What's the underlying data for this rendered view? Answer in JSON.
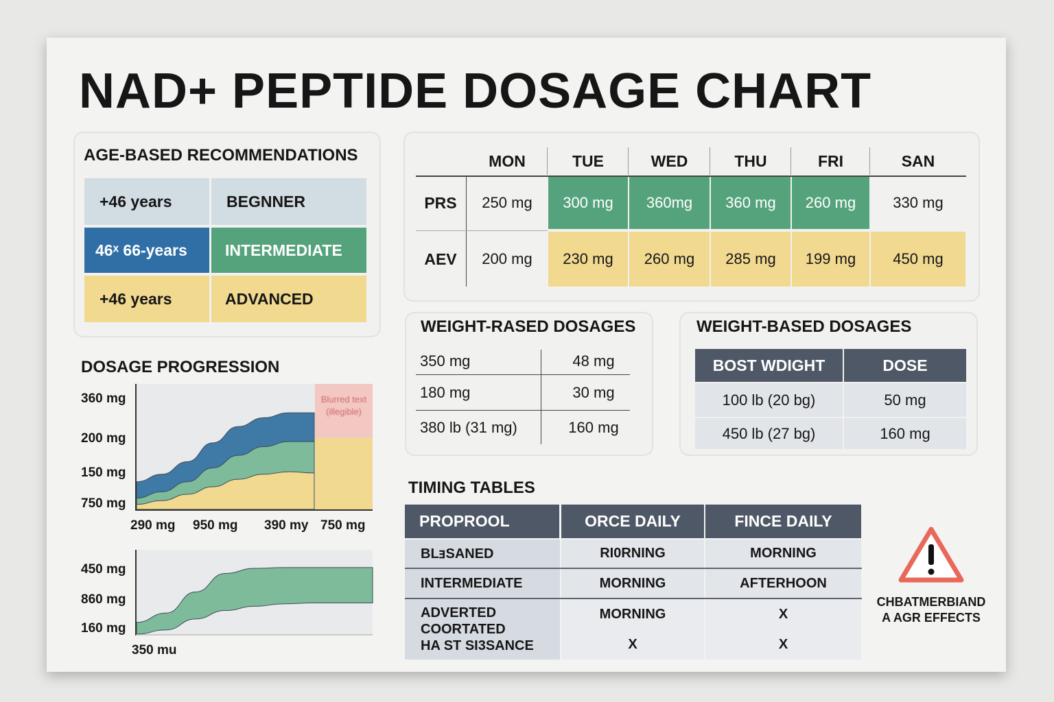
{
  "title": "NAD+ PEPTIDE DOSAGE CHART",
  "colors": {
    "blue": "#2f6fa6",
    "green": "#55a37c",
    "yellow": "#f1d98f",
    "dark_header": "#4f5866",
    "warning": "#e8685a",
    "pink": "#f3c7c2"
  },
  "age": {
    "heading": "AGE-BASED RECOMMENDATIONS",
    "rows": [
      [
        "+46 years",
        "BEGNNER"
      ],
      [
        "46ˣ 66-years",
        "INTERMEDIATE"
      ],
      [
        "+46 years",
        "ADVANCED"
      ]
    ]
  },
  "weekly": {
    "days": [
      "MON",
      "TUE",
      "WED",
      "THU",
      "FRI",
      "SAN"
    ],
    "rows": [
      {
        "label": "PRS",
        "values": [
          "250 mg",
          "300 mg",
          "360mg",
          "360 mg",
          "260 mg",
          "330 mg"
        ]
      },
      {
        "label": "AEV",
        "values": [
          "200 mg",
          "230 mg",
          "260 mg",
          "285 mg",
          "199 mg",
          "450 mg"
        ]
      }
    ]
  },
  "weight1": {
    "heading": "WEIGHT-RASED DOSAGES",
    "rows": [
      [
        "350 mg",
        "48 mg"
      ],
      [
        "180 mg",
        "30 mg"
      ],
      [
        "380 lb (31 mg)",
        "160 mg"
      ]
    ]
  },
  "weight2": {
    "heading": "WEIGHT-BASED DOSAGES",
    "headers": [
      "BOST WDIGHT",
      "DOSE"
    ],
    "rows": [
      [
        "100 lb (20 bg)",
        "50 mg"
      ],
      [
        "450 lb (27 bg)",
        "160 mg"
      ]
    ]
  },
  "progression": {
    "heading": "DOSAGE PROGRESSION"
  },
  "timing": {
    "heading": "TIMING TABLES",
    "headers": [
      "PROPROOL",
      "ORCE DAILY",
      "FINCE DAILY"
    ],
    "rows": [
      [
        "BLⱻSANED",
        "RI0RNING",
        "MORNING"
      ],
      [
        "INTERMEDIATE",
        "MORNING",
        "AFTERHOON"
      ],
      [
        "ADVERTED\nCOORTATED\nHA ST SI3SANCE",
        "MORNING",
        "X"
      ],
      [
        "",
        "X",
        "X"
      ]
    ]
  },
  "warning": {
    "icon": "warning-triangle-icon",
    "line1": "CHBATMERBIAND",
    "line2": "A AGR EFFECTS"
  },
  "chart_data": [
    {
      "type": "area",
      "stacked": true,
      "ytick_labels": [
        "360 mg",
        "200 mg",
        "150 mg",
        "750 mg"
      ],
      "xtick_labels": [
        "290 mg",
        "950 mg",
        "390 my",
        "750 mg"
      ],
      "annotation": "Blurred text (illegible)",
      "note_units": "values as fraction of axis height",
      "series": [
        {
          "color": "#f1d98f",
          "values": [
            0.04,
            0.07,
            0.12,
            0.18,
            0.24,
            0.28,
            0.3,
            0.29
          ]
        },
        {
          "color": "#7dbb9a",
          "values": [
            0.09,
            0.14,
            0.22,
            0.33,
            0.43,
            0.5,
            0.54,
            0.54
          ]
        },
        {
          "color": "#3f79a6",
          "values": [
            0.22,
            0.28,
            0.38,
            0.53,
            0.66,
            0.73,
            0.77,
            0.77
          ]
        }
      ],
      "highlight_block": {
        "yellow_top": 0.57,
        "pink_top": 1.0
      }
    },
    {
      "type": "area",
      "ytick_labels": [
        "450 mg",
        "860 mg",
        "160 mg"
      ],
      "xtick_labels": [
        "350 mu"
      ],
      "series": [
        {
          "color": "#7dbb9a",
          "lower": [
            0,
            0.05,
            0.18,
            0.28,
            0.33,
            0.36,
            0.37,
            0.37,
            0.37
          ],
          "upper": [
            0.14,
            0.25,
            0.5,
            0.72,
            0.78,
            0.79,
            0.79,
            0.79,
            0.79
          ]
        }
      ]
    }
  ]
}
